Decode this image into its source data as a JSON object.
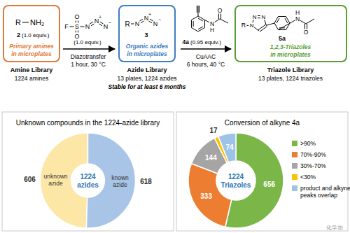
{
  "scheme": {
    "amine_box": {
      "atoms": [
        "R",
        "NH₂"
      ],
      "compound": "2",
      "equiv": "(1.0 equiv.)",
      "label": [
        "Primary amines",
        "in microplates"
      ],
      "library": "Amine Library",
      "count": "1224 amines"
    },
    "reagent": {
      "atoms": [
        "F",
        "S",
        "O",
        "O",
        "N",
        "N",
        "N"
      ],
      "charges": [
        "+",
        "−"
      ],
      "equiv": "(1.0 equiv.)",
      "conditions": [
        "Diazotransfer",
        "1 hour, 30 °C"
      ]
    },
    "azide_box": {
      "atoms": [
        "R",
        "N",
        "N",
        "N"
      ],
      "charges": [
        "+",
        "−"
      ],
      "compound": "3",
      "label": [
        "Organic azides",
        "in microplates"
      ],
      "library": "Azide Library",
      "count": "13 plates, 1224 azides",
      "note": "Stable for at least 6 months"
    },
    "alkyne": {
      "atoms": [
        "N",
        "H",
        "O"
      ],
      "compound": "4a",
      "equiv": "(0.95 equiv.)",
      "conditions": [
        "CuAAC",
        "6 hours, 40 °C"
      ]
    },
    "triazole_box": {
      "atoms": [
        "N",
        "N",
        "N",
        "R",
        "N",
        "H",
        "O"
      ],
      "compound": "5a",
      "label": [
        "1,2,3-Triazoles",
        "in microplates"
      ],
      "library": "Triazole Library",
      "count": "13 plates, 1224 triazoles"
    }
  },
  "chart_data": [
    {
      "type": "donut",
      "title": "Unknown compounds in the 1224-azide library",
      "categories": [
        "unknown azide",
        "known azide"
      ],
      "values": [
        606,
        618
      ],
      "colors": [
        "#fde7a6",
        "#a8c5e8"
      ],
      "center_label": [
        "1224",
        "azides"
      ],
      "data_labels": true
    },
    {
      "type": "donut",
      "title": "Conversion of alkyne 4a",
      "categories": [
        ">90%",
        "70%-90%",
        "30%-70%",
        "<30%",
        "product and alkyne peaks overlap"
      ],
      "values": [
        656,
        333,
        144,
        17,
        74
      ],
      "colors": [
        "#7ab648",
        "#ed7d31",
        "#a5a5a5",
        "#ffc000",
        "#9dc3e6"
      ],
      "center_label": [
        "1224",
        "Triazoles"
      ],
      "data_labels": true,
      "legend": "right"
    }
  ],
  "watermark": "化学加"
}
